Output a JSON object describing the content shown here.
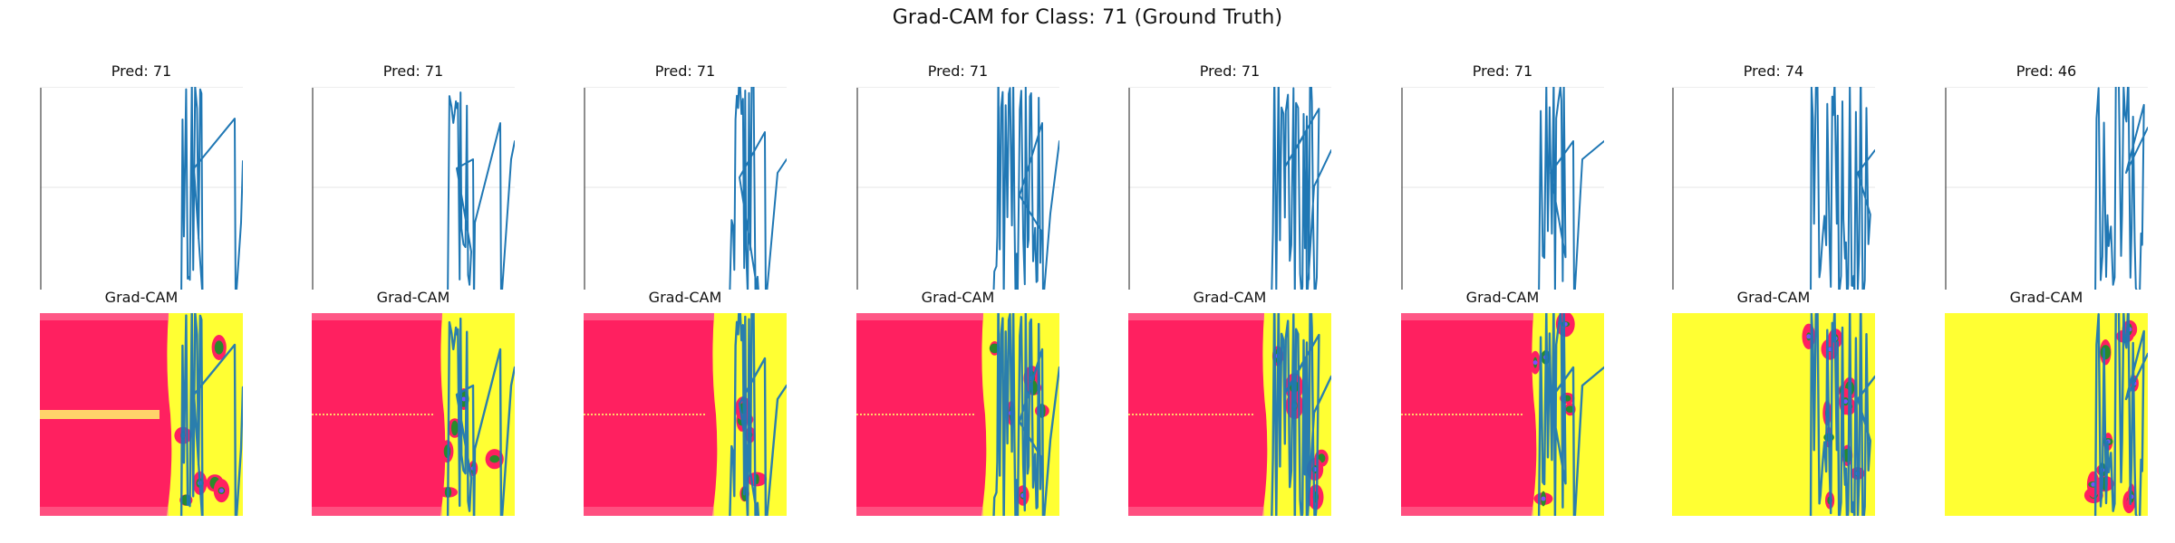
{
  "suptitle": "Grad-CAM for Class: 71 (Ground Truth)",
  "row_top_titles": [
    "Pred: 71",
    "Pred: 71",
    "Pred: 71",
    "Pred: 71",
    "Pred: 71",
    "Pred: 71",
    "Pred: 74",
    "Pred: 46"
  ],
  "row_bottom_title": "Grad-CAM",
  "colors": {
    "signal_line": "#1f77b4",
    "heat_low": "#ff2060",
    "heat_high": "#ffff33",
    "heat_mid": "#2a8a2a",
    "heat_peak": "#7b4dff"
  },
  "chart_data": [
    {
      "type": "line",
      "panel": 1,
      "title": "Pred: 71",
      "axis": "off",
      "pred": 71
    },
    {
      "type": "line",
      "panel": 2,
      "title": "Pred: 71",
      "axis": "off",
      "pred": 71
    },
    {
      "type": "line",
      "panel": 3,
      "title": "Pred: 71",
      "axis": "off",
      "pred": 71
    },
    {
      "type": "line",
      "panel": 4,
      "title": "Pred: 71",
      "axis": "off",
      "pred": 71
    },
    {
      "type": "line",
      "panel": 5,
      "title": "Pred: 71",
      "axis": "off",
      "pred": 71
    },
    {
      "type": "line",
      "panel": 6,
      "title": "Pred: 71",
      "axis": "off",
      "pred": 71
    },
    {
      "type": "line",
      "panel": 7,
      "title": "Pred: 74",
      "axis": "off",
      "pred": 74
    },
    {
      "type": "line",
      "panel": 8,
      "title": "Pred: 46",
      "axis": "off",
      "pred": 46
    },
    {
      "type": "heatmap",
      "panel": 1,
      "title": "Grad-CAM",
      "colormap": "pink-to-yellow",
      "overlay": "signal line"
    },
    {
      "type": "heatmap",
      "panel": 2,
      "title": "Grad-CAM",
      "colormap": "pink-to-yellow",
      "overlay": "signal line"
    },
    {
      "type": "heatmap",
      "panel": 3,
      "title": "Grad-CAM",
      "colormap": "pink-to-yellow",
      "overlay": "signal line"
    },
    {
      "type": "heatmap",
      "panel": 4,
      "title": "Grad-CAM",
      "colormap": "pink-to-yellow",
      "overlay": "signal line"
    },
    {
      "type": "heatmap",
      "panel": 5,
      "title": "Grad-CAM",
      "colormap": "pink-to-yellow",
      "overlay": "signal line"
    },
    {
      "type": "heatmap",
      "panel": 6,
      "title": "Grad-CAM",
      "colormap": "pink-to-yellow",
      "overlay": "signal line"
    },
    {
      "type": "heatmap",
      "panel": 7,
      "title": "Grad-CAM",
      "colormap": "pink-to-yellow",
      "overlay": "signal line"
    },
    {
      "type": "heatmap",
      "panel": 8,
      "title": "Grad-CAM",
      "colormap": "pink-to-yellow",
      "overlay": "signal line"
    }
  ]
}
